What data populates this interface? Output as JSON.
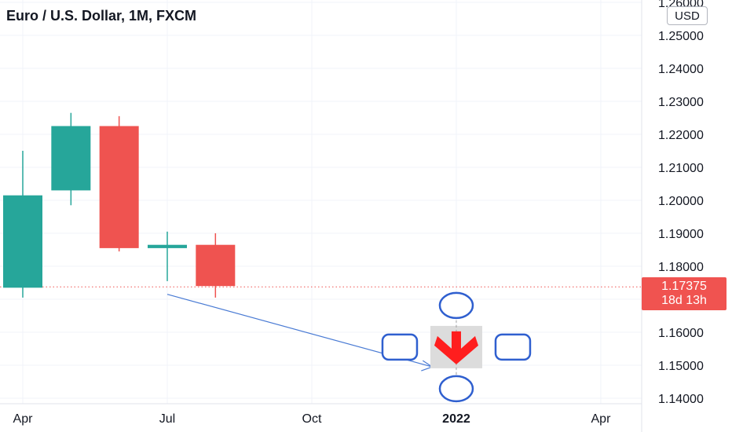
{
  "header": {
    "title": "Euro / U.S. Dollar, 1M, FXCM",
    "currency": "USD"
  },
  "price_badge": {
    "price": "1.17375",
    "countdown": "18d 13h"
  },
  "colors": {
    "up": "#26a69a",
    "down": "#ef5350",
    "arrow": "#4a7bd4",
    "grid": "#f0f3fa",
    "markers": "#2f5fcf",
    "signal_arrow": "#ff1e1e"
  },
  "chart_data": {
    "type": "candlestick",
    "title": "Euro / U.S. Dollar, 1M, FXCM",
    "ylim": [
      1.1375,
      1.2605
    ],
    "y_ticks": [
      "1.14000",
      "1.15000",
      "1.16000",
      "1.17000",
      "1.18000",
      "1.19000",
      "1.20000",
      "1.21000",
      "1.22000",
      "1.23000",
      "1.24000",
      "1.25000",
      "1.26000"
    ],
    "x_ticks": [
      "Apr",
      "Jul",
      "Oct",
      "2022",
      "Apr"
    ],
    "x_tick_months": [
      3,
      6,
      9,
      12,
      15
    ],
    "candles": [
      {
        "month": 3,
        "open": 1.1735,
        "high": 1.215,
        "low": 1.1705,
        "close": 1.2015
      },
      {
        "month": 4,
        "open": 1.203,
        "high": 1.2265,
        "low": 1.1985,
        "close": 1.2225
      },
      {
        "month": 5,
        "open": 1.2225,
        "high": 1.2255,
        "low": 1.1845,
        "close": 1.1855
      },
      {
        "month": 6,
        "open": 1.1855,
        "high": 1.1905,
        "low": 1.1755,
        "close": 1.1865
      },
      {
        "month": 7,
        "open": 1.1865,
        "high": 1.19,
        "low": 1.1705,
        "close": 1.174
      }
    ],
    "last_price": 1.17375,
    "grid": true,
    "annotations": [
      {
        "type": "arrow",
        "from": {
          "month": 6,
          "y": 1.1715
        },
        "to": {
          "month": 11.5,
          "y": 1.1495
        }
      },
      {
        "type": "signal-arrow-down",
        "month": 12,
        "y": 1.1555
      }
    ]
  }
}
